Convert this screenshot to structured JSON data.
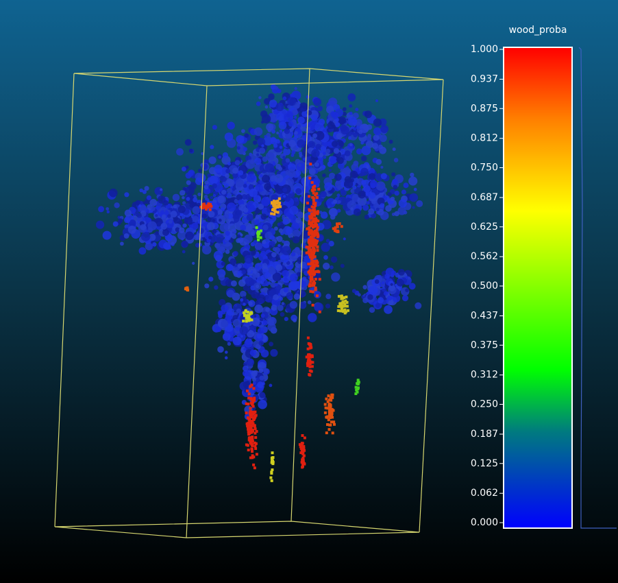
{
  "colorbar": {
    "title": "wood_proba",
    "ticks": [
      {
        "value": 1.0,
        "label": "1.000"
      },
      {
        "value": 0.937,
        "label": "0.937"
      },
      {
        "value": 0.875,
        "label": "0.875"
      },
      {
        "value": 0.812,
        "label": "0.812"
      },
      {
        "value": 0.75,
        "label": "0.750"
      },
      {
        "value": 0.687,
        "label": "0.687"
      },
      {
        "value": 0.625,
        "label": "0.625"
      },
      {
        "value": 0.562,
        "label": "0.562"
      },
      {
        "value": 0.5,
        "label": "0.500"
      },
      {
        "value": 0.437,
        "label": "0.437"
      },
      {
        "value": 0.375,
        "label": "0.375"
      },
      {
        "value": 0.312,
        "label": "0.312"
      },
      {
        "value": 0.25,
        "label": "0.250"
      },
      {
        "value": 0.187,
        "label": "0.187"
      },
      {
        "value": 0.125,
        "label": "0.125"
      },
      {
        "value": 0.062,
        "label": "0.062"
      },
      {
        "value": 0.0,
        "label": "0.000"
      }
    ]
  }
}
